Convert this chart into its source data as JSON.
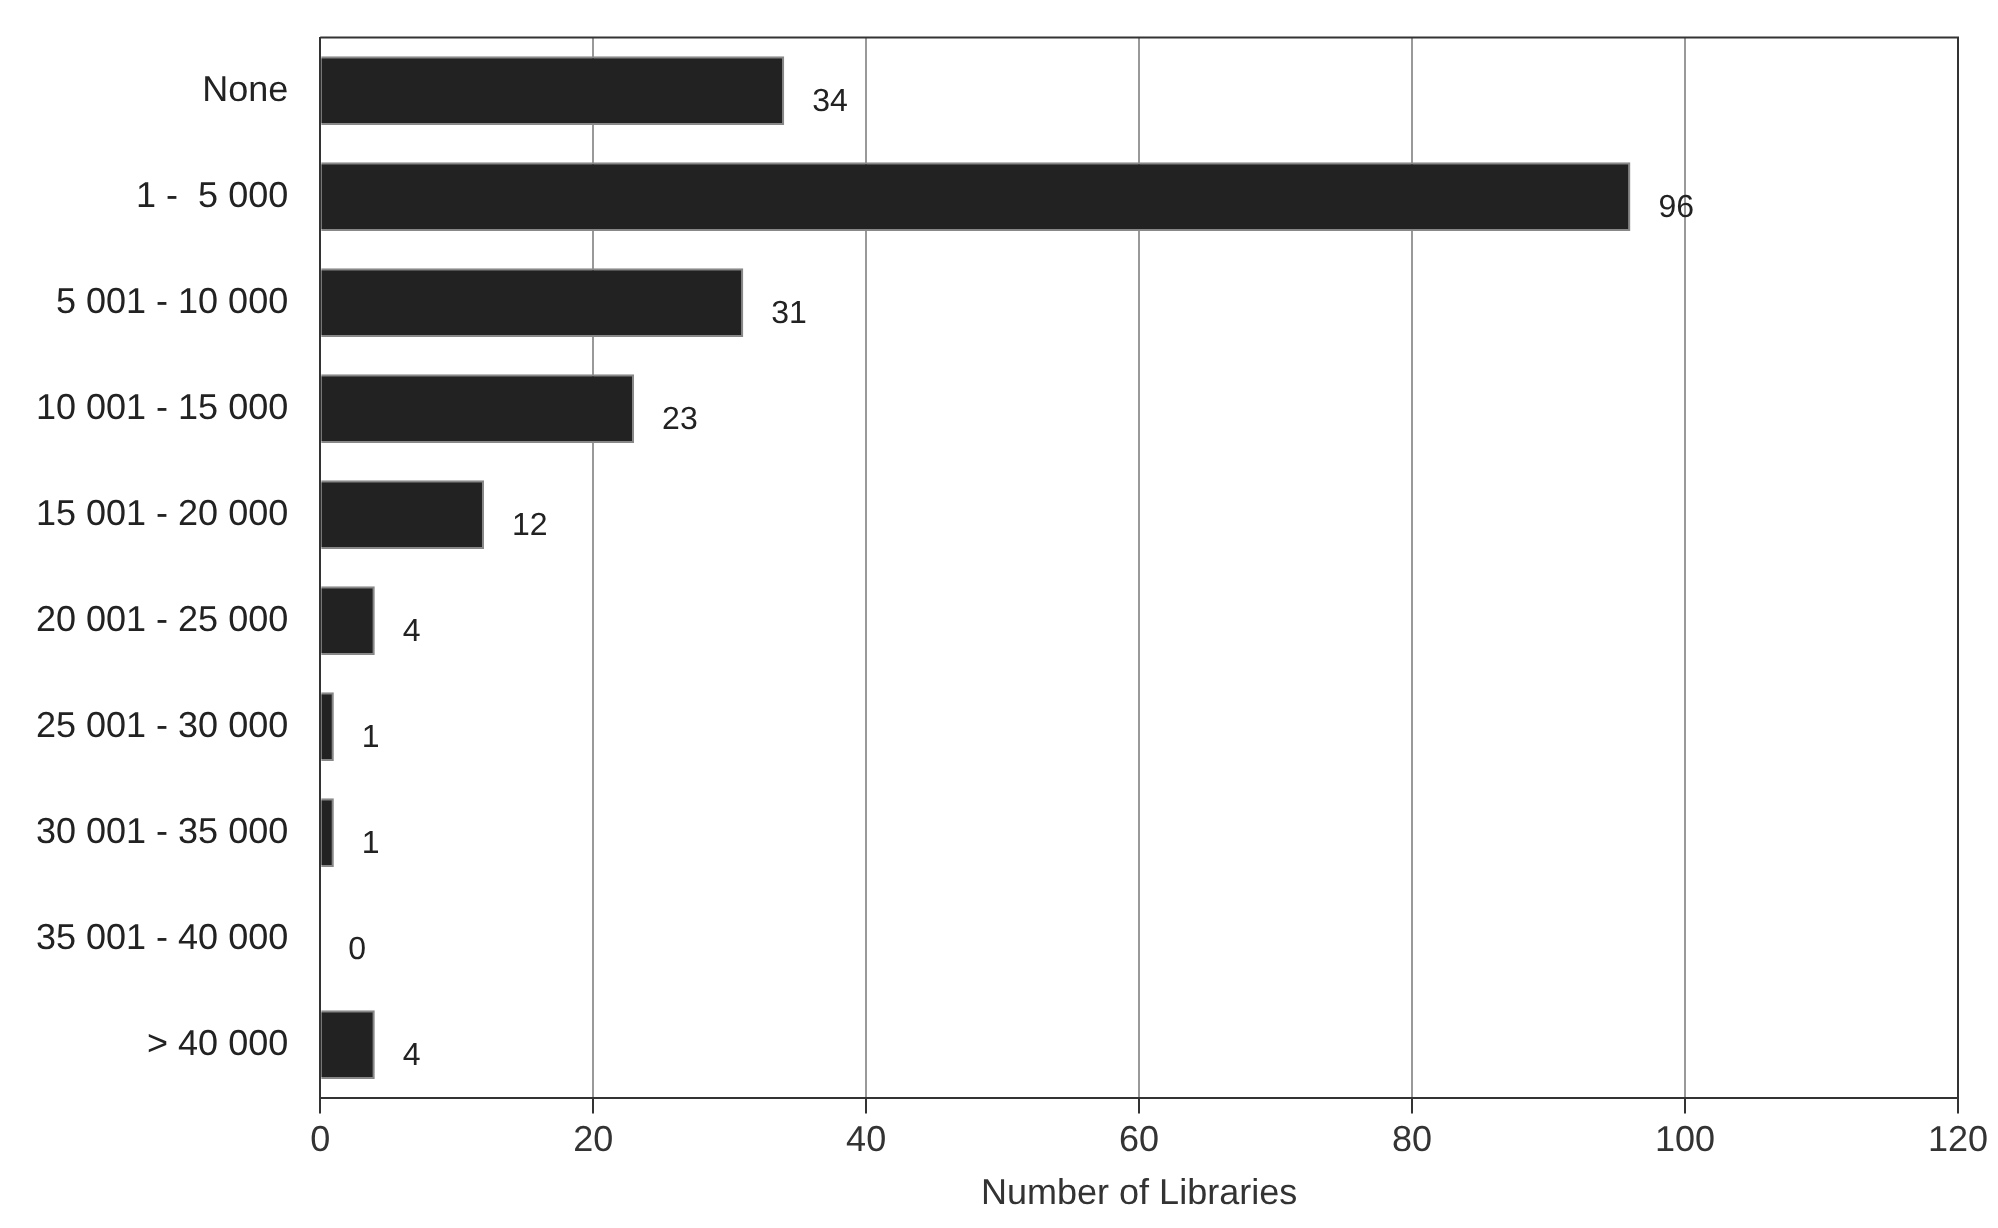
{
  "chart_data": {
    "type": "bar",
    "orientation": "horizontal",
    "xlabel": "Number of Libraries",
    "categories": [
      "None",
      "1 -  5 000",
      "5 001 - 10 000",
      "10 001 - 15 000",
      "15 001 - 20 000",
      "20 001 - 25 000",
      "25 001 - 30 000",
      "30 001 - 35 000",
      "35 001 - 40 000",
      "> 40 000"
    ],
    "values": [
      34,
      96,
      31,
      23,
      12,
      4,
      1,
      1,
      0,
      4
    ],
    "color": "#222222",
    "xlim": [
      0,
      120
    ],
    "xticks": [
      0,
      20,
      40,
      60,
      80,
      100,
      120
    ],
    "grid": "x",
    "data_labels": true,
    "legend": false
  }
}
